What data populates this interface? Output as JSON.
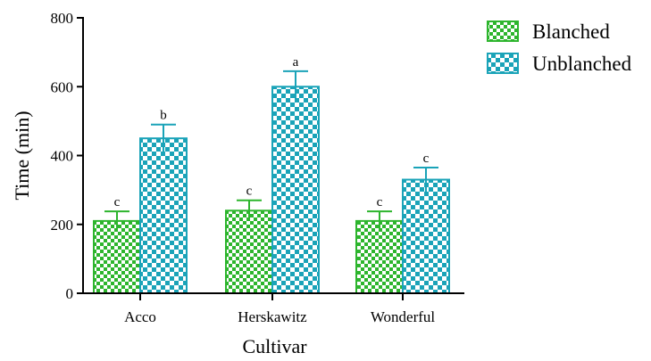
{
  "chart_data": {
    "type": "bar",
    "xlabel": "Cultivar",
    "ylabel": "Time (min)",
    "ylim": [
      0,
      800
    ],
    "yticks": [
      "0",
      "200",
      "400",
      "600",
      "800"
    ],
    "categories": [
      "Acco",
      "Herskawitz",
      "Wonderful"
    ],
    "series": [
      {
        "name": "Blanched",
        "values": [
          210,
          240,
          210
        ],
        "errors": [
          28,
          30,
          28
        ],
        "labels": [
          "c",
          "c",
          "c"
        ],
        "color": "#2db52d"
      },
      {
        "name": "Unblanched",
        "values": [
          450,
          600,
          330
        ],
        "errors": [
          40,
          45,
          35
        ],
        "labels": [
          "b",
          "a",
          "c"
        ],
        "color": "#1aa3b8"
      }
    ],
    "legend_position": "top-right",
    "grid": false
  }
}
